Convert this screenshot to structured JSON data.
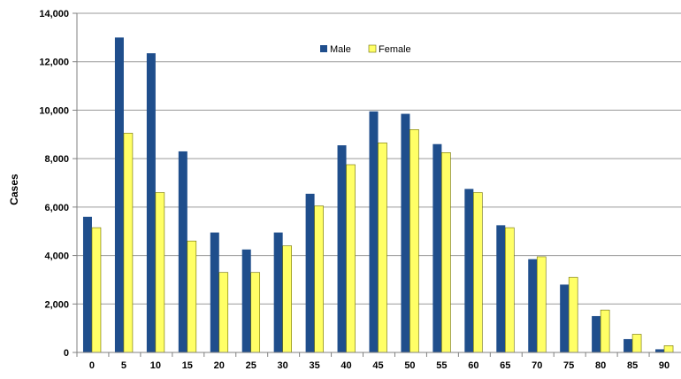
{
  "chart_data": {
    "type": "bar",
    "title": "",
    "xlabel": "",
    "ylabel": "Cases",
    "ylim": [
      0,
      14000
    ],
    "yticks": [
      0,
      2000,
      4000,
      6000,
      8000,
      10000,
      12000,
      14000
    ],
    "ytick_labels": [
      "0",
      "2,000",
      "4,000",
      "6,000",
      "8,000",
      "10,000",
      "12,000",
      "14,000"
    ],
    "grid": true,
    "legend_position": "top-center",
    "categories": [
      "0",
      "5",
      "10",
      "15",
      "20",
      "25",
      "30",
      "35",
      "40",
      "45",
      "50",
      "55",
      "60",
      "65",
      "70",
      "75",
      "80",
      "85",
      "90"
    ],
    "series": [
      {
        "name": "Male",
        "color": "#1F4E8C",
        "values": [
          5600,
          13000,
          12350,
          8300,
          4950,
          4250,
          4950,
          6550,
          8550,
          9950,
          9850,
          8600,
          6750,
          5250,
          3850,
          2800,
          1500,
          550,
          130
        ]
      },
      {
        "name": "Female",
        "color": "#FFFF66",
        "values": [
          5150,
          9050,
          6600,
          4600,
          3300,
          3300,
          4400,
          6050,
          7750,
          8650,
          9200,
          8250,
          6600,
          5150,
          3950,
          3100,
          1750,
          750,
          280
        ]
      }
    ]
  }
}
